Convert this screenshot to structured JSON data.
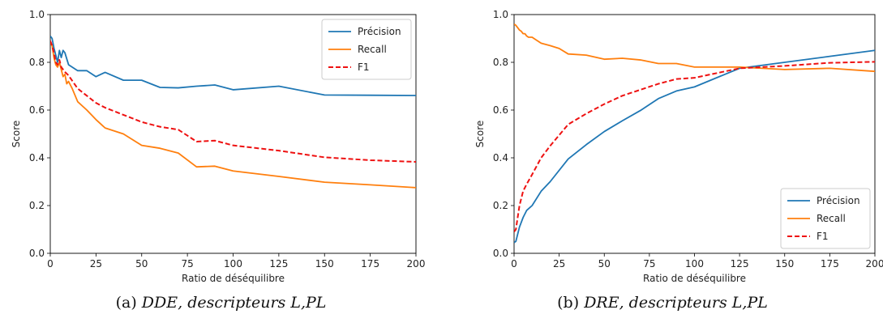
{
  "chart_data": [
    {
      "type": "line",
      "caption_label": "(a)",
      "caption_text": "DDE, descripteurs L,PL",
      "xlabel": "Ratio de déséquilibre",
      "ylabel": "Score",
      "xlim": [
        0,
        200
      ],
      "ylim": [
        0.0,
        1.0
      ],
      "xticks": [
        "0",
        "25",
        "50",
        "75",
        "100",
        "125",
        "150",
        "175",
        "200"
      ],
      "yticks": [
        "0.0",
        "0.2",
        "0.4",
        "0.6",
        "0.8",
        "1.0"
      ],
      "legend_position": "top-right",
      "grid": false,
      "series": [
        {
          "name": "Précision",
          "color": "#1f77b4",
          "style": "solid",
          "x": [
            0,
            1,
            2,
            3,
            4,
            5,
            6,
            7,
            8,
            10,
            15,
            20,
            25,
            30,
            40,
            50,
            60,
            70,
            80,
            90,
            100,
            125,
            150,
            175,
            200
          ],
          "y": [
            0.91,
            0.9,
            0.86,
            0.83,
            0.8,
            0.85,
            0.82,
            0.85,
            0.84,
            0.79,
            0.765,
            0.765,
            0.74,
            0.758,
            0.725,
            0.725,
            0.695,
            0.693,
            0.7,
            0.705,
            0.685,
            0.7,
            0.663,
            0.662,
            0.661
          ]
        },
        {
          "name": "Recall",
          "color": "#ff7f0e",
          "style": "solid",
          "x": [
            0,
            1,
            2,
            3,
            4,
            5,
            6,
            7,
            8,
            9,
            10,
            12,
            15,
            20,
            25,
            30,
            40,
            50,
            60,
            70,
            80,
            90,
            100,
            125,
            150,
            175,
            200
          ],
          "y": [
            0.88,
            0.87,
            0.82,
            0.79,
            0.78,
            0.8,
            0.77,
            0.74,
            0.75,
            0.71,
            0.72,
            0.69,
            0.635,
            0.6,
            0.56,
            0.525,
            0.5,
            0.452,
            0.44,
            0.42,
            0.362,
            0.365,
            0.345,
            0.322,
            0.298,
            0.287,
            0.275
          ]
        },
        {
          "name": "F1",
          "color": "#ee1111",
          "style": "dashed",
          "x": [
            0,
            1,
            2,
            3,
            4,
            5,
            6,
            7,
            8,
            10,
            15,
            20,
            25,
            30,
            40,
            50,
            60,
            70,
            80,
            90,
            100,
            125,
            150,
            175,
            200
          ],
          "y": [
            0.89,
            0.87,
            0.84,
            0.8,
            0.79,
            0.81,
            0.78,
            0.77,
            0.76,
            0.745,
            0.69,
            0.66,
            0.63,
            0.61,
            0.58,
            0.55,
            0.53,
            0.518,
            0.468,
            0.472,
            0.452,
            0.43,
            0.402,
            0.39,
            0.383
          ]
        }
      ]
    },
    {
      "type": "line",
      "caption_label": "(b)",
      "caption_text": "DRE, descripteurs L,PL",
      "xlabel": "Ratio de déséquilibre",
      "ylabel": "Score",
      "xlim": [
        0,
        200
      ],
      "ylim": [
        0.0,
        1.0
      ],
      "xticks": [
        "0",
        "25",
        "50",
        "75",
        "100",
        "125",
        "150",
        "175",
        "200"
      ],
      "yticks": [
        "0.0",
        "0.2",
        "0.4",
        "0.6",
        "0.8",
        "1.0"
      ],
      "legend_position": "bottom-right",
      "grid": false,
      "series": [
        {
          "name": "Précision",
          "color": "#1f77b4",
          "style": "solid",
          "x": [
            0,
            1,
            2,
            3,
            5,
            7,
            10,
            15,
            20,
            30,
            40,
            50,
            60,
            70,
            80,
            90,
            100,
            125,
            150,
            175,
            200
          ],
          "y": [
            0.045,
            0.05,
            0.08,
            0.11,
            0.15,
            0.18,
            0.2,
            0.26,
            0.3,
            0.395,
            0.455,
            0.51,
            0.555,
            0.598,
            0.648,
            0.68,
            0.697,
            0.775,
            0.8,
            0.825,
            0.85
          ]
        },
        {
          "name": "Recall",
          "color": "#ff7f0e",
          "style": "solid",
          "x": [
            0,
            1,
            2,
            3,
            4,
            5,
            6,
            7,
            8,
            10,
            12,
            15,
            20,
            25,
            30,
            40,
            50,
            60,
            70,
            80,
            90,
            100,
            125,
            150,
            175,
            200
          ],
          "y": [
            0.96,
            0.955,
            0.945,
            0.935,
            0.93,
            0.92,
            0.92,
            0.91,
            0.905,
            0.905,
            0.895,
            0.88,
            0.87,
            0.858,
            0.835,
            0.83,
            0.813,
            0.817,
            0.81,
            0.795,
            0.795,
            0.78,
            0.78,
            0.77,
            0.775,
            0.762
          ]
        },
        {
          "name": "F1",
          "color": "#ee1111",
          "style": "dashed",
          "x": [
            0,
            1,
            2,
            3,
            5,
            7,
            10,
            15,
            20,
            30,
            40,
            50,
            60,
            70,
            80,
            90,
            100,
            125,
            150,
            175,
            200
          ],
          "y": [
            0.09,
            0.1,
            0.15,
            0.2,
            0.26,
            0.29,
            0.33,
            0.4,
            0.45,
            0.54,
            0.585,
            0.625,
            0.66,
            0.685,
            0.71,
            0.73,
            0.735,
            0.775,
            0.785,
            0.798,
            0.802
          ]
        }
      ]
    }
  ]
}
